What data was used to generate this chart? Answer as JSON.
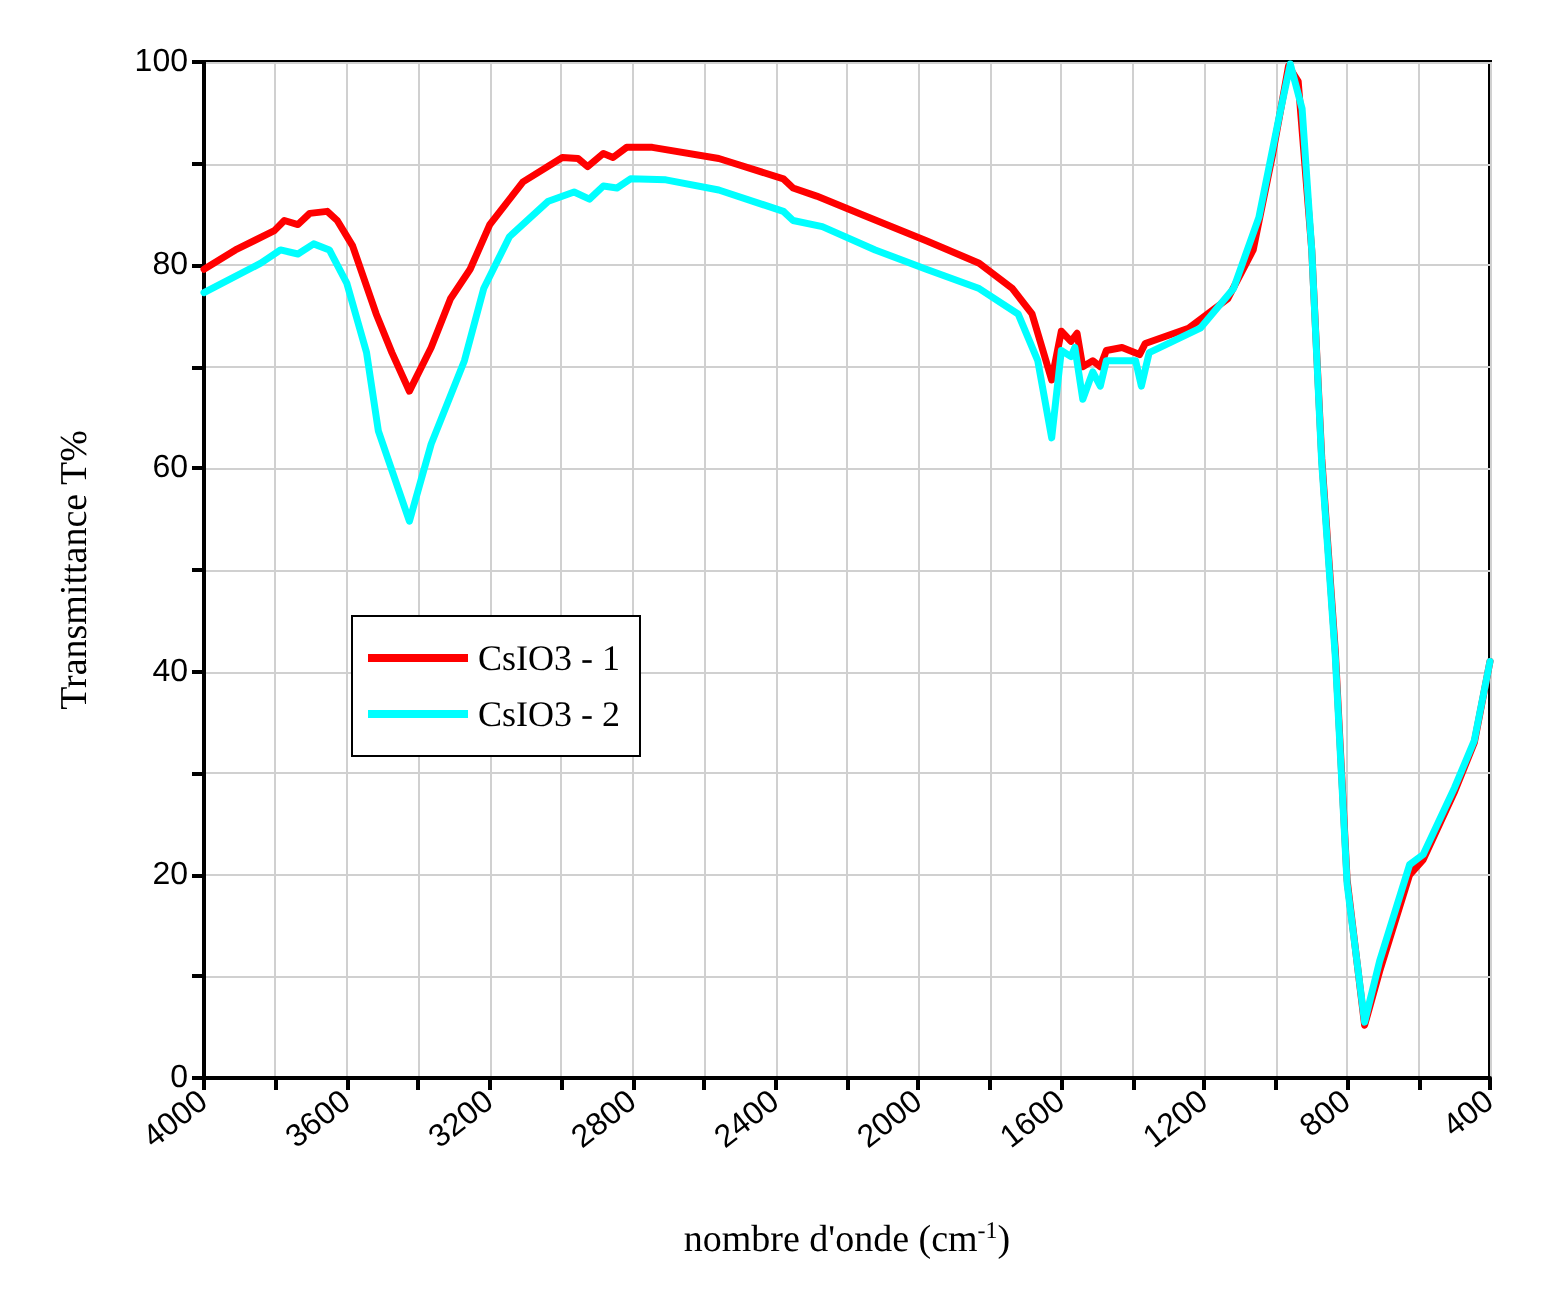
{
  "chart_data": {
    "type": "line",
    "xlabel": "nombre d'onde (cm$^{-1}$)",
    "ylabel": "Transmittance T%",
    "xlim": [
      4000,
      400
    ],
    "xticks": [
      4000,
      {
        "value": 3800,
        "label": null
      },
      3600,
      {
        "value": 3400,
        "label": null
      },
      3200,
      {
        "value": 3000,
        "label": null
      },
      2800,
      {
        "value": 2600,
        "label": null
      },
      2400,
      {
        "value": 2200,
        "label": null
      },
      2000,
      {
        "value": 1800,
        "label": null
      },
      1600,
      {
        "value": 1400,
        "label": null
      },
      1200,
      {
        "value": 1000,
        "label": null
      },
      800,
      {
        "value": 600,
        "label": null
      },
      400
    ],
    "ylim": [
      0,
      100
    ],
    "yticks": [
      0,
      {
        "value": 10,
        "label": null
      },
      20,
      {
        "value": 30,
        "label": null
      },
      40,
      {
        "value": 50,
        "label": null
      },
      60,
      {
        "value": 70,
        "label": null
      },
      80,
      {
        "value": 90,
        "label": null
      },
      100
    ],
    "grid": true,
    "legend": "left",
    "series": [
      {
        "name": "CsIO3 - 1",
        "color": "#ff0000",
        "x": [
          4000,
          3912,
          3803,
          3775,
          3737,
          3704,
          3655,
          3627,
          3584,
          3518,
          3474,
          3425,
          3364,
          3310,
          3255,
          3200,
          3107,
          2997,
          2953,
          2926,
          2882,
          2855,
          2817,
          2745,
          2559,
          2378,
          2351,
          2285,
          2159,
          1978,
          1830,
          1737,
          1682,
          1627,
          1600,
          1573,
          1556,
          1540,
          1512,
          1491,
          1474,
          1430,
          1381,
          1365,
          1244,
          1134,
          1063,
          1008,
          964,
          937,
          899,
          871,
          833,
          800,
          751,
          709,
          625,
          587,
          499,
          444,
          400
        ],
        "values": [
          79.6,
          81.5,
          83.4,
          84.4,
          84.0,
          85.1,
          85.3,
          84.4,
          81.9,
          75.2,
          71.4,
          67.6,
          71.9,
          76.7,
          79.6,
          84.0,
          88.2,
          90.6,
          90.5,
          89.7,
          91.0,
          90.6,
          91.6,
          91.6,
          90.5,
          88.5,
          87.6,
          86.8,
          85.0,
          82.4,
          80.2,
          77.7,
          75.2,
          68.7,
          73.5,
          72.5,
          73.3,
          70.0,
          70.6,
          70.0,
          71.6,
          71.9,
          71.2,
          72.3,
          73.8,
          76.7,
          81.5,
          91.0,
          99.6,
          98.1,
          81.5,
          61.0,
          42.0,
          19.5,
          5.2,
          10.5,
          20.0,
          21.5,
          28.2,
          33.0,
          41.0
        ]
      },
      {
        "name": "CsIO3 - 2",
        "color": "#00ffff",
        "x": [
          4000,
          3841,
          3786,
          3737,
          3693,
          3649,
          3600,
          3545,
          3512,
          3425,
          3364,
          3271,
          3217,
          3145,
          3036,
          2964,
          2921,
          2882,
          2844,
          2806,
          2707,
          2559,
          2378,
          2351,
          2269,
          2121,
          1978,
          1830,
          1721,
          1666,
          1627,
          1600,
          1573,
          1562,
          1540,
          1512,
          1491,
          1474,
          1392,
          1376,
          1354,
          1211,
          1118,
          1047,
          992,
          959,
          926,
          899,
          871,
          833,
          800,
          751,
          709,
          625,
          587,
          499,
          444,
          400
        ],
        "values": [
          77.3,
          80.2,
          81.5,
          81.1,
          82.1,
          81.5,
          78.2,
          71.4,
          63.7,
          54.8,
          62.4,
          70.6,
          77.7,
          82.8,
          86.3,
          87.2,
          86.5,
          87.8,
          87.6,
          88.5,
          88.4,
          87.4,
          85.3,
          84.4,
          83.8,
          81.5,
          79.6,
          77.7,
          75.2,
          70.6,
          63.0,
          71.6,
          71.0,
          71.9,
          66.8,
          69.5,
          68.1,
          70.6,
          70.6,
          68.1,
          71.4,
          73.8,
          77.7,
          84.7,
          94.3,
          99.8,
          95.4,
          81.5,
          60.5,
          41.4,
          19.1,
          5.5,
          11.5,
          21.0,
          22.0,
          28.6,
          33.2,
          41.0
        ]
      }
    ]
  }
}
